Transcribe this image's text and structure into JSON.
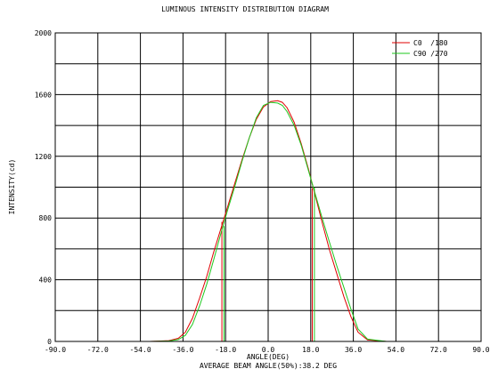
{
  "chart_data": {
    "type": "line",
    "title": "LUMINOUS INTENSITY DISTRIBUTION DIAGRAM",
    "xlabel": "ANGLE(DEG)",
    "ylabel": "INTENSITY(cd)",
    "subcaption": "AVERAGE BEAM ANGLE(50%):38.2 DEG",
    "xlim": [
      -90,
      90
    ],
    "ylim": [
      0,
      2000
    ],
    "x_ticks": [
      "-90.0",
      "-72.0",
      "-54.0",
      "-36.0",
      "-18.0",
      "0.0",
      "18.0",
      "36.0",
      "54.0",
      "72.0",
      "90.0"
    ],
    "y_ticks": [
      "0",
      "400",
      "800",
      "1200",
      "1600",
      "2000"
    ],
    "grid": true,
    "legend_position": "top-right",
    "beam_markers": [
      -19.1,
      19.1
    ],
    "series": [
      {
        "name": "C0  /180",
        "color": "#e00000",
        "x": [
          -90,
          -50,
          -42,
          -38,
          -35,
          -32,
          -29,
          -26,
          -23,
          -20,
          -17,
          -14,
          -11,
          -8,
          -5,
          -2,
          1,
          4,
          6,
          8,
          11,
          14,
          17,
          20,
          23,
          26,
          29,
          32,
          35,
          38,
          42,
          50,
          90
        ],
        "y": [
          0,
          0,
          5,
          20,
          60,
          150,
          280,
          420,
          580,
          730,
          880,
          1030,
          1180,
          1320,
          1440,
          1520,
          1555,
          1560,
          1550,
          1515,
          1420,
          1280,
          1120,
          940,
          760,
          590,
          440,
          290,
          160,
          60,
          10,
          0,
          0
        ]
      },
      {
        "name": "C90 /270",
        "color": "#1ec81e",
        "x": [
          -90,
          -50,
          -42,
          -38,
          -35,
          -32,
          -29,
          -26,
          -23,
          -20,
          -17,
          -14,
          -11,
          -8,
          -5,
          -2,
          1,
          4,
          6,
          8,
          11,
          14,
          17,
          20,
          23,
          26,
          29,
          32,
          35,
          38,
          42,
          50,
          90
        ],
        "y": [
          0,
          0,
          3,
          12,
          40,
          110,
          230,
          370,
          530,
          700,
          860,
          1010,
          1170,
          1320,
          1450,
          1530,
          1550,
          1545,
          1530,
          1490,
          1400,
          1270,
          1110,
          950,
          790,
          640,
          490,
          350,
          210,
          80,
          15,
          0,
          0
        ]
      }
    ]
  }
}
